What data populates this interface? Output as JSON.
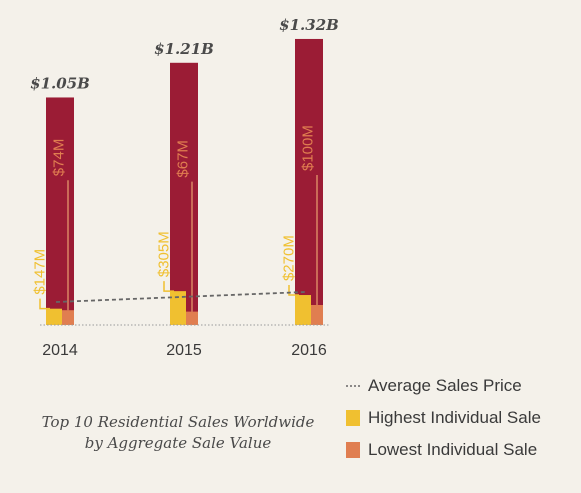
{
  "chart_data": {
    "type": "bar",
    "categories": [
      "2014",
      "2015",
      "2016"
    ],
    "totals": [
      "$1.05B",
      "$1.21B",
      "$1.32B"
    ],
    "total_values_b": [
      1.05,
      1.21,
      1.32
    ],
    "series": [
      {
        "name": "Highest Individual Sale",
        "values_m": [
          147,
          305,
          270
        ],
        "labels": [
          "$147M",
          "$305M",
          "$270M"
        ],
        "color": "#f0c030"
      },
      {
        "name": "Lowest Individual Sale",
        "values_m": [
          74,
          67,
          100
        ],
        "labels": [
          "$74M",
          "$67M",
          "$100M"
        ],
        "color": "#e07e50"
      },
      {
        "name": "Average Sales Price",
        "style": "dotted-line"
      }
    ],
    "bar_color": "#9b1c35",
    "caption": [
      "Top 10 Residential Sales Worldwide",
      "by Aggregate Sale Value"
    ]
  },
  "legend": [
    {
      "label": "Average Sales Price",
      "icon": "dotted-line-icon"
    },
    {
      "label": "Highest Individual Sale",
      "color": "#f0c030"
    },
    {
      "label": "Lowest Individual Sale",
      "color": "#e07e50"
    }
  ]
}
